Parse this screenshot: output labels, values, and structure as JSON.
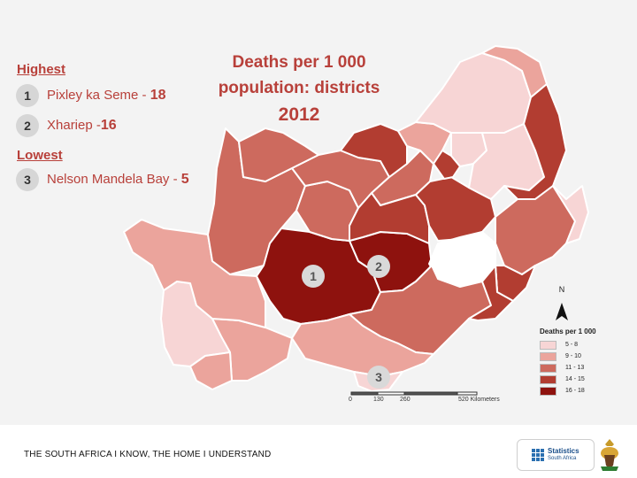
{
  "title": {
    "line1": "Deaths per 1 000",
    "line2": "population: districts",
    "year": "2012"
  },
  "highest": {
    "label": "Highest",
    "items": [
      {
        "rank": "1",
        "name": "Pixley ka Seme - ",
        "value": "18"
      },
      {
        "rank": "2",
        "name": "Xhariep -",
        "value": "16"
      }
    ]
  },
  "lowest": {
    "label": "Lowest",
    "items": [
      {
        "rank": "3",
        "name": "Nelson Mandela Bay - ",
        "value": "5"
      }
    ]
  },
  "markers": [
    "1",
    "2",
    "3"
  ],
  "legend": {
    "title": "Deaths per 1 000",
    "classes": [
      {
        "label": "5 - 8",
        "color": "#f7d5d5"
      },
      {
        "label": "9 - 10",
        "color": "#eba49c"
      },
      {
        "label": "11 - 13",
        "color": "#cd6a5e"
      },
      {
        "label": "14 - 15",
        "color": "#b23d31"
      },
      {
        "label": "16 - 18",
        "color": "#8e120e"
      }
    ]
  },
  "north_label": "N",
  "scale": {
    "ticks": [
      "0",
      "130",
      "260",
      "520 Kilometers"
    ]
  },
  "footer": {
    "slogan": "THE SOUTH AFRICA I KNOW, THE HOME I UNDERSTAND",
    "logo_name": "Statistics",
    "logo_sub": "South Africa"
  },
  "colors": {
    "accent": "#b8403a",
    "background": "#f3f3f3",
    "border": "#ffffff"
  }
}
